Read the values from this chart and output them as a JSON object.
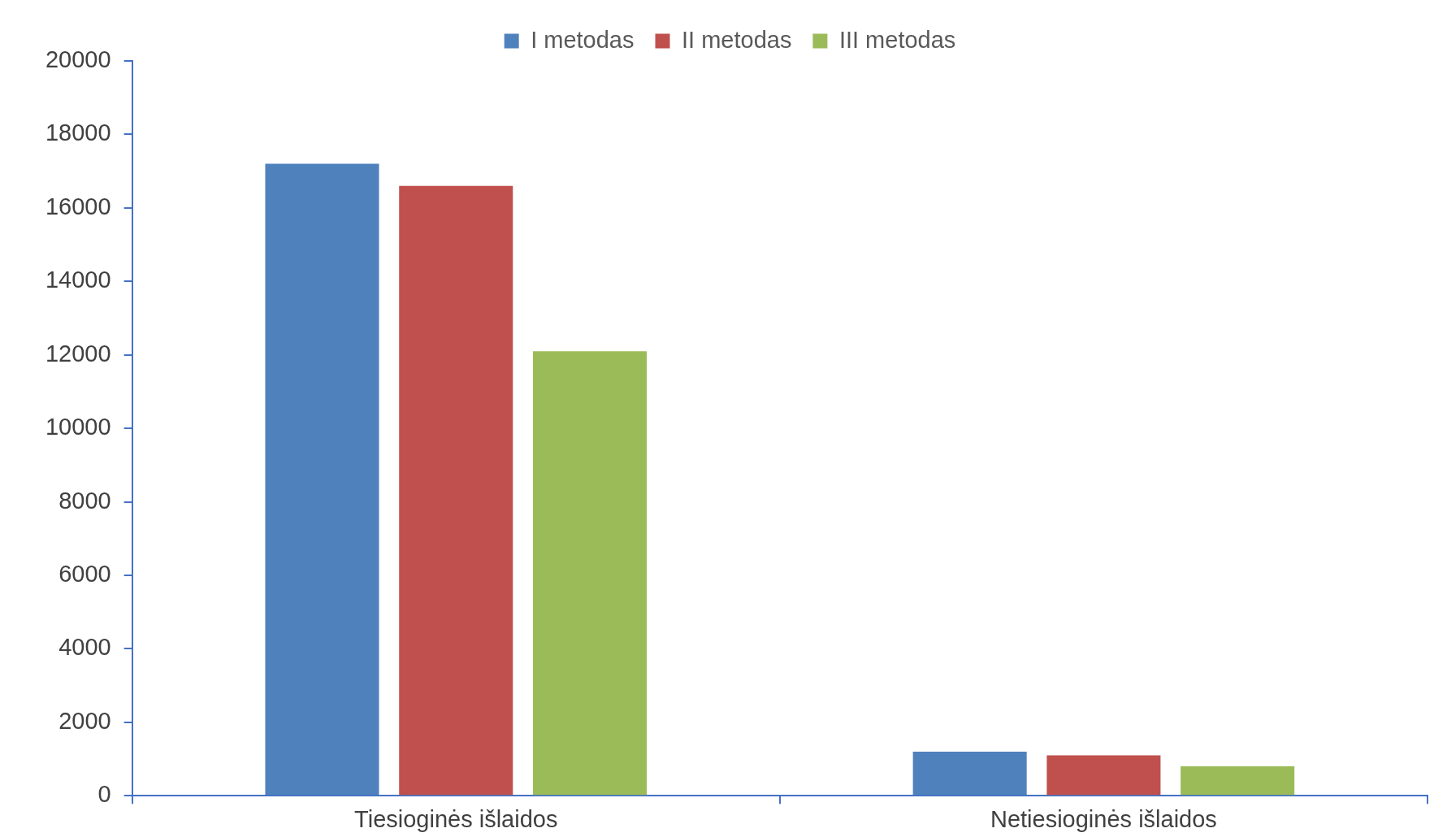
{
  "chart_data": {
    "type": "bar",
    "categories": [
      "Tiesioginės išlaidos",
      "Netiesioginės išlaidos"
    ],
    "series": [
      {
        "name": "I metodas",
        "color": "#4f81bd",
        "values": [
          17200,
          1200
        ]
      },
      {
        "name": "II metodas",
        "color": "#c0504d",
        "values": [
          16600,
          1100
        ]
      },
      {
        "name": "III metodas",
        "color": "#9bbb59",
        "values": [
          12100,
          800
        ]
      }
    ],
    "ylim": [
      0,
      20000
    ],
    "yticks": [
      0,
      2000,
      4000,
      6000,
      8000,
      10000,
      12000,
      14000,
      16000,
      18000,
      20000
    ],
    "grid": false,
    "legend": "top"
  }
}
